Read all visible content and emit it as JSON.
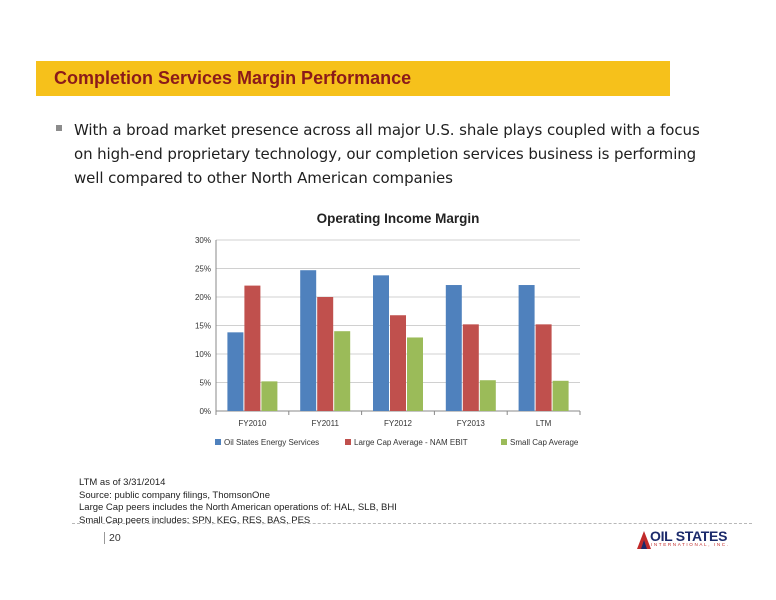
{
  "header": {
    "title": "Completion Services Margin Performance"
  },
  "bullets": [
    {
      "text": "With a broad market presence across all major U.S. shale plays coupled with a focus on high-end proprietary technology, our completion services business is performing well compared to other North American companies"
    }
  ],
  "chart_data": {
    "type": "bar",
    "title": "Operating Income Margin",
    "categories": [
      "FY2010",
      "FY2011",
      "FY2012",
      "FY2013",
      "LTM"
    ],
    "series": [
      {
        "name": "Oil States Energy Services",
        "color": "#4f81bd",
        "values": [
          13.8,
          24.7,
          23.8,
          22.1,
          22.1
        ]
      },
      {
        "name": "Large Cap Average - NAM EBIT",
        "color": "#c0504d",
        "values": [
          22.0,
          20.0,
          16.8,
          15.2,
          15.2
        ]
      },
      {
        "name": "Small Cap Average",
        "color": "#9bbb59",
        "values": [
          5.2,
          14.0,
          12.9,
          5.4,
          5.3
        ]
      }
    ],
    "y_ticks": [
      "0%",
      "5%",
      "10%",
      "15%",
      "20%",
      "25%",
      "30%"
    ],
    "ylim": [
      0,
      30
    ],
    "grid": true,
    "legend": "bottom"
  },
  "footnotes": [
    "LTM as of 3/31/2014",
    "Source: public company filings, ThomsonOne",
    "Large Cap peers includes the North American operations of: HAL, SLB, BHI",
    "Small Cap peers includes: SPN, KEG, RES, BAS, PES"
  ],
  "footer": {
    "page_number": "20"
  },
  "logo": {
    "main_text": "OIL STATES",
    "sub_text": "INTERNATIONAL, INC."
  }
}
